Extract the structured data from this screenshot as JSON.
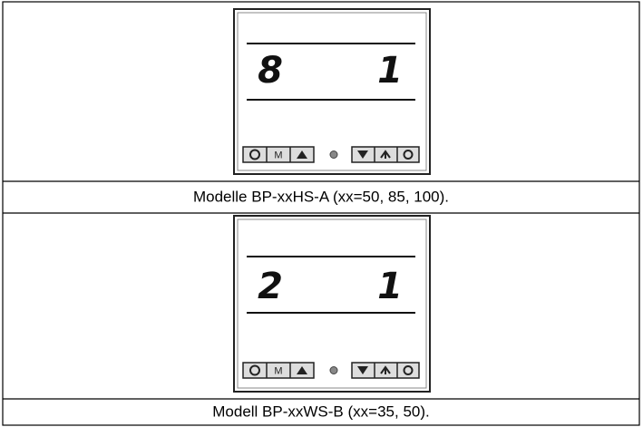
{
  "panels": [
    {
      "display": {
        "left": "8",
        "right": "1"
      },
      "buttons": {
        "mode": "M"
      },
      "caption": "Modelle BP-xxHS-A (xx=50, 85, 100)."
    },
    {
      "display": {
        "left": "2",
        "right": "1"
      },
      "buttons": {
        "mode": "M"
      },
      "caption": "Modell BP-xxWS-B (xx=35, 50)."
    }
  ]
}
